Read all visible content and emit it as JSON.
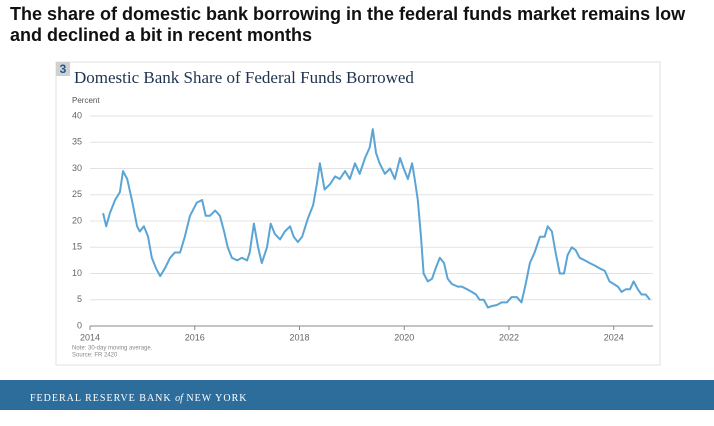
{
  "slide": {
    "headline": [
      "The share of domestic bank borrowing in the federal funds market remains low",
      "and declined a bit in recent months"
    ],
    "footer": [
      "FEDERAL RESERVE BANK",
      "of",
      "NEW YORK"
    ]
  },
  "chart_data": {
    "type": "line",
    "figure_number": "3",
    "title": "Domestic Bank Share of Federal Funds Borrowed",
    "y_label": "Percent",
    "notes": [
      "Note: 30-day moving average.",
      "Source: FR 2420"
    ],
    "xlim": [
      2014,
      2024.75
    ],
    "xticks": [
      2014,
      2016,
      2018,
      2020,
      2022,
      2024
    ],
    "ylim": [
      0,
      40
    ],
    "yticks": [
      0,
      5,
      10,
      15,
      20,
      25,
      30,
      35,
      40
    ],
    "grid": true,
    "x": [
      2014.25,
      2014.31,
      2014.38,
      2014.48,
      2014.57,
      2014.63,
      2014.71,
      2014.8,
      2014.9,
      2014.95,
      2015.03,
      2015.11,
      2015.18,
      2015.26,
      2015.34,
      2015.43,
      2015.53,
      2015.62,
      2015.72,
      2015.81,
      2015.91,
      2016.04,
      2016.14,
      2016.21,
      2016.29,
      2016.39,
      2016.48,
      2016.56,
      2016.63,
      2016.71,
      2016.81,
      2016.9,
      2017.0,
      2017.05,
      2017.13,
      2017.21,
      2017.28,
      2017.38,
      2017.45,
      2017.53,
      2017.63,
      2017.72,
      2017.82,
      2017.89,
      2017.97,
      2018.05,
      2018.16,
      2018.26,
      2018.33,
      2018.39,
      2018.48,
      2018.58,
      2018.68,
      2018.77,
      2018.87,
      2018.96,
      2019.06,
      2019.15,
      2019.25,
      2019.34,
      2019.4,
      2019.46,
      2019.53,
      2019.63,
      2019.73,
      2019.82,
      2019.92,
      2019.99,
      2020.07,
      2020.15,
      2020.2,
      2020.26,
      2020.32,
      2020.37,
      2020.45,
      2020.53,
      2020.6,
      2020.68,
      2020.76,
      2020.83,
      2020.91,
      2021.02,
      2021.1,
      2021.2,
      2021.29,
      2021.37,
      2021.44,
      2021.52,
      2021.6,
      2021.67,
      2021.77,
      2021.86,
      2021.96,
      2022.05,
      2022.15,
      2022.24,
      2022.32,
      2022.4,
      2022.49,
      2022.59,
      2022.68,
      2022.74,
      2022.82,
      2022.89,
      2022.97,
      2023.05,
      2023.12,
      2023.2,
      2023.27,
      2023.35,
      2023.45,
      2023.54,
      2023.64,
      2023.73,
      2023.83,
      2023.92,
      2024.0,
      2024.08,
      2024.15,
      2024.23,
      2024.31,
      2024.38,
      2024.46,
      2024.53,
      2024.61,
      2024.69
    ],
    "series": [
      {
        "name": "Domestic bank share",
        "color": "#5ba4d6",
        "values": [
          21.5,
          19,
          21.5,
          24,
          25.5,
          29.5,
          28,
          24,
          19,
          18,
          19,
          17,
          13,
          11,
          9.5,
          11,
          13,
          14,
          14,
          17,
          21,
          23.5,
          24,
          21,
          21,
          22,
          21,
          18,
          15,
          13,
          12.5,
          13,
          12.5,
          14,
          19.5,
          15,
          12,
          15,
          19.5,
          17.5,
          16.5,
          18,
          19,
          17,
          16,
          17,
          20.5,
          23,
          27,
          31,
          26,
          27,
          28.5,
          28,
          29.5,
          28,
          31,
          29,
          32,
          34,
          37.5,
          33,
          31,
          29,
          30,
          28,
          32,
          30,
          28,
          31,
          28,
          24,
          17,
          10,
          8.5,
          9,
          11,
          13,
          12,
          9,
          8,
          7.5,
          7.5,
          7,
          6.5,
          6,
          5,
          5,
          3.5,
          3.8,
          4,
          4.5,
          4.5,
          5.5,
          5.5,
          4.5,
          8,
          12,
          14,
          17,
          17,
          19,
          18,
          14,
          10,
          10,
          13.5,
          15,
          14.5,
          13,
          12.5,
          12,
          11.5,
          11,
          10.5,
          8.5,
          8,
          7.5,
          6.5,
          7,
          7,
          8.5,
          7,
          6,
          6,
          5
        ]
      }
    ]
  }
}
